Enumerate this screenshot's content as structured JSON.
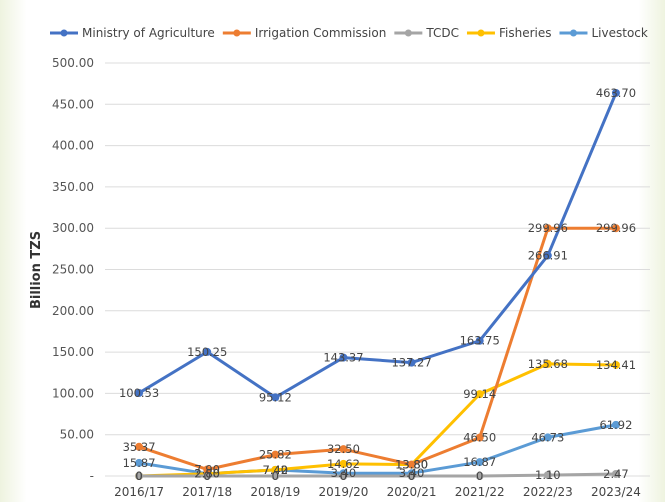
{
  "chart_data": {
    "type": "line",
    "title": "",
    "xlabel": "",
    "ylabel": "Billion TZS",
    "categories": [
      "2016/17",
      "2017/18",
      "2018/19",
      "2019/20",
      "2020/21",
      "2021/22",
      "2022/23",
      "2023/24"
    ],
    "ylim": [
      0,
      500
    ],
    "yticks": [
      "-",
      "50.00",
      "100.00",
      "150.00",
      "200.00",
      "250.00",
      "300.00",
      "350.00",
      "400.00",
      "450.00",
      "500.00"
    ],
    "grid": true,
    "legend_position": "top",
    "series": [
      {
        "name": "Ministry of Agriculture",
        "color": "#4472c4",
        "values": [
          100.53,
          150.25,
          95.12,
          143.37,
          137.27,
          163.75,
          266.91,
          463.7
        ],
        "labels": [
          "100.53",
          "150.25",
          "95.12",
          "143.37",
          "137.27",
          "163.75",
          "266.91",
          "463.70"
        ]
      },
      {
        "name": "Irrigation Commission",
        "color": "#ed7d31",
        "values": [
          35.37,
          7.9,
          25.82,
          32.5,
          13.8,
          46.5,
          299.96,
          299.96
        ],
        "labels": [
          "35.37",
          "7.90",
          "25.82",
          "32.50",
          "13.80",
          "46.50",
          "299.96",
          "299.96"
        ]
      },
      {
        "name": "TCDC",
        "color": "#a5a5a5",
        "values": [
          0,
          0,
          0,
          0,
          0,
          0,
          1.1,
          2.47
        ],
        "labels": [
          "0",
          "0",
          "0",
          "0",
          "0",
          "0",
          "1.10",
          "2.47"
        ]
      },
      {
        "name": "Fisheries",
        "color": "#ffc000",
        "values": [
          0,
          2.8,
          7.42,
          14.62,
          13.8,
          99.14,
          135.68,
          134.41
        ],
        "labels": [
          "0",
          "2.80",
          "7.42",
          "14.62",
          "13.80",
          "99.14",
          "135.68",
          "134.41"
        ]
      },
      {
        "name": "Livestock",
        "color": "#5b9bd5",
        "values": [
          15.87,
          2.8,
          7.4,
          3.4,
          3.4,
          16.87,
          46.73,
          61.92
        ],
        "labels": [
          "15.87",
          "2.80",
          "7.40",
          "3.40",
          "3.40",
          "16.87",
          "46.73",
          "61.92"
        ]
      }
    ]
  }
}
